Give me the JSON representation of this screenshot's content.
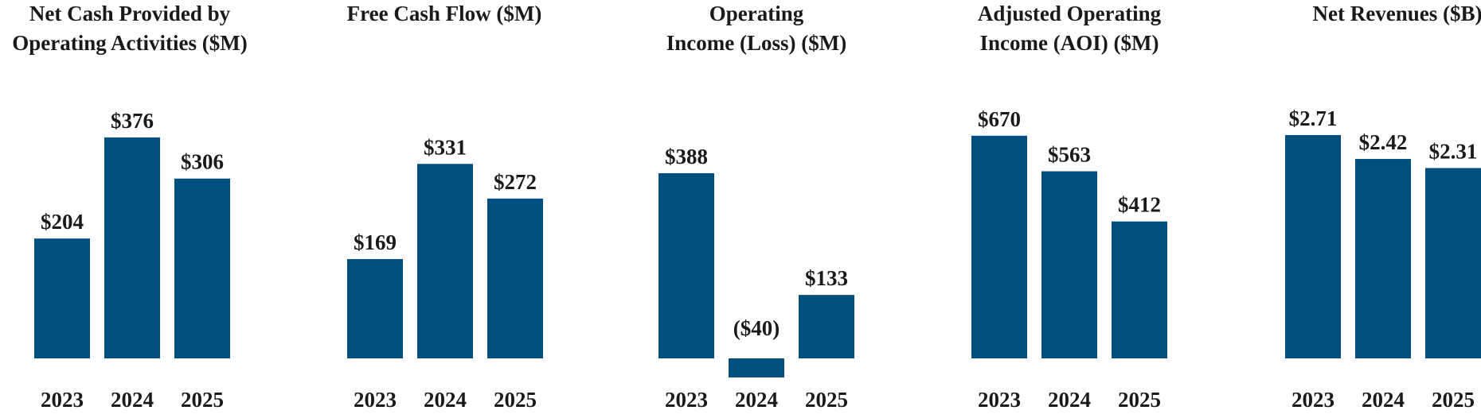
{
  "colors": {
    "bar": "#00507F",
    "text": "#1a1a1a"
  },
  "chart_data": [
    {
      "type": "bar",
      "title": [
        "Net Cash Provided by",
        "Operating Activities ($M)"
      ],
      "categories": [
        "2023",
        "2024",
        "2025"
      ],
      "values": [
        204,
        376,
        306
      ],
      "value_labels": [
        "$204",
        "$376",
        "$306"
      ]
    },
    {
      "type": "bar",
      "title": [
        "Free Cash Flow ($M)"
      ],
      "categories": [
        "2023",
        "2024",
        "2025"
      ],
      "values": [
        169,
        331,
        272
      ],
      "value_labels": [
        "$169",
        "$331",
        "$272"
      ]
    },
    {
      "type": "bar",
      "title": [
        "Operating",
        "Income (Loss) ($M)"
      ],
      "categories": [
        "2023",
        "2024",
        "2025"
      ],
      "values": [
        388,
        -40,
        133
      ],
      "value_labels": [
        "$388",
        "($40)",
        "$133"
      ]
    },
    {
      "type": "bar",
      "title": [
        "Adjusted Operating",
        "Income (AOI) ($M)"
      ],
      "categories": [
        "2023",
        "2024",
        "2025"
      ],
      "values": [
        670,
        563,
        412
      ],
      "value_labels": [
        "$670",
        "$563",
        "$412"
      ]
    },
    {
      "type": "bar",
      "title": [
        "Net Revenues ($B)"
      ],
      "categories": [
        "2023",
        "2024",
        "2025"
      ],
      "values": [
        2.71,
        2.42,
        2.31
      ],
      "value_labels": [
        "$2.71",
        "$2.42",
        "$2.31"
      ]
    }
  ]
}
